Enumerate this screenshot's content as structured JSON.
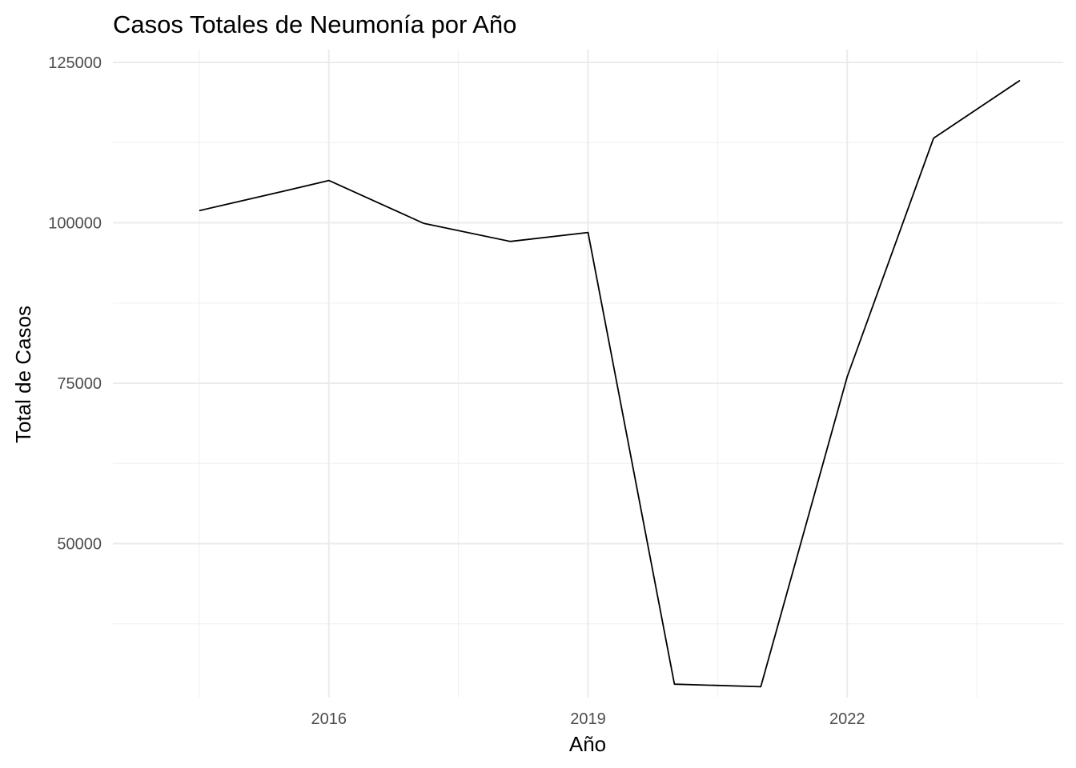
{
  "chart_data": {
    "type": "line",
    "title": "Casos Totales de Neumonía por Año",
    "xlabel": "Año",
    "ylabel": "Total de Casos",
    "x": [
      2014.5,
      2015.5,
      2016.0,
      2017.1,
      2018.1,
      2019.0,
      2020.0,
      2021.0,
      2022.0,
      2023.0,
      2024.0
    ],
    "series": [
      {
        "values": [
          101900,
          105000,
          106600,
          99900,
          97100,
          98500,
          28100,
          27700,
          76000,
          113200,
          122200
        ]
      }
    ],
    "xlim": [
      2013.5,
      2024.5
    ],
    "ylim": [
      26000,
      127000
    ],
    "x_ticks": [
      2016,
      2019,
      2022
    ],
    "x_tick_labels": [
      "2016",
      "2019",
      "2022"
    ],
    "x_minor_ticks": [
      2014.5,
      2017.5,
      2020.5,
      2023.5
    ],
    "y_ticks": [
      50000,
      75000,
      100000,
      125000
    ],
    "y_tick_labels": [
      "50000",
      "75000",
      "100000",
      "125000"
    ],
    "y_minor_ticks": [
      37500,
      62500,
      87500,
      112500
    ],
    "grid": true,
    "legend": "none",
    "line_color": "#000000",
    "grid_color": "#ebebeb"
  }
}
